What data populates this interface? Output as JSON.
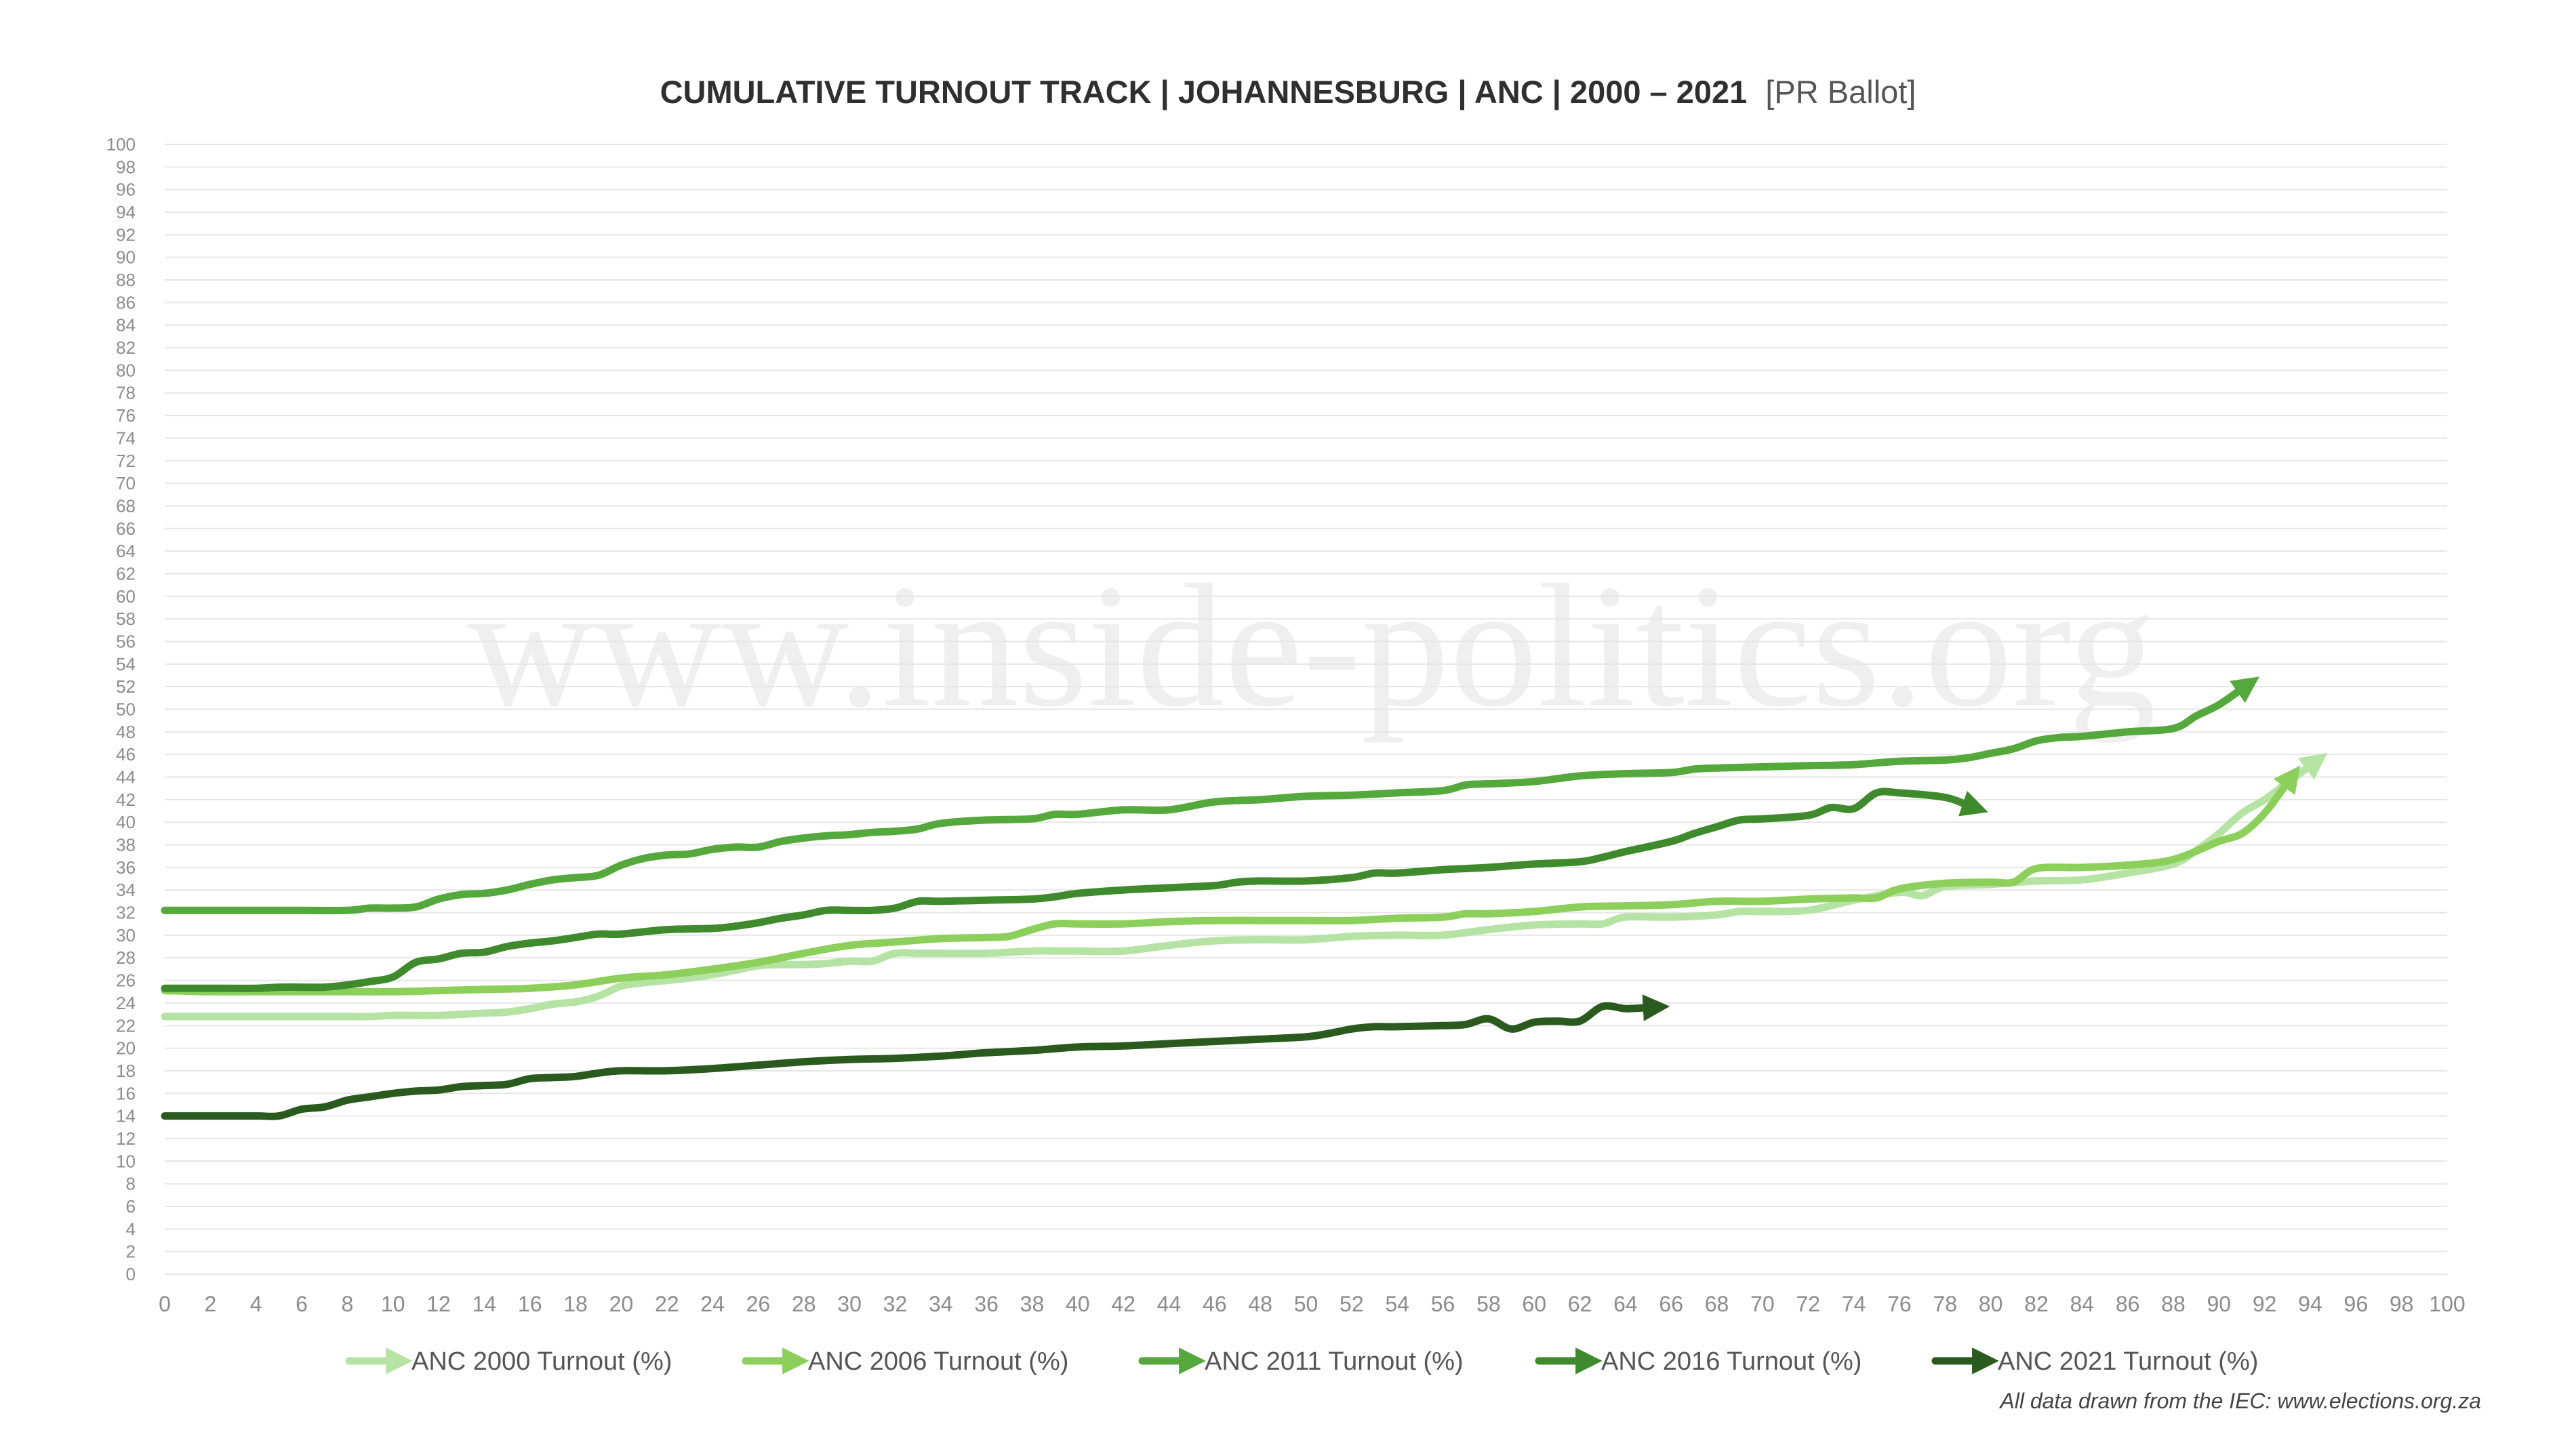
{
  "chart_data": {
    "type": "line",
    "title": "CUMULATIVE TURNOUT TRACK | JOHANNESBURG | ANC | 2000 – 2021",
    "title_suffix": "[PR Ballot]",
    "xlabel": "",
    "ylabel": "",
    "xlim": [
      0,
      100
    ],
    "ylim": [
      0,
      100
    ],
    "x_ticks": [
      0,
      2,
      4,
      6,
      8,
      10,
      12,
      14,
      16,
      18,
      20,
      22,
      24,
      26,
      28,
      30,
      32,
      34,
      36,
      38,
      40,
      42,
      44,
      46,
      48,
      50,
      52,
      54,
      56,
      58,
      60,
      62,
      64,
      66,
      68,
      70,
      72,
      74,
      76,
      78,
      80,
      82,
      84,
      86,
      88,
      90,
      92,
      94,
      96,
      98,
      100
    ],
    "y_ticks": [
      0,
      2,
      4,
      6,
      8,
      10,
      12,
      14,
      16,
      18,
      20,
      22,
      24,
      26,
      28,
      30,
      32,
      34,
      36,
      38,
      40,
      42,
      44,
      46,
      48,
      50,
      52,
      54,
      56,
      58,
      60,
      62,
      64,
      66,
      68,
      70,
      72,
      74,
      76,
      78,
      80,
      82,
      84,
      86,
      88,
      90,
      92,
      94,
      96,
      98,
      100
    ],
    "grid": true,
    "legend_position": "bottom",
    "watermark": "www.inside-politics.org",
    "source_note": "All data drawn from the IEC: www.elections.org.za",
    "series": [
      {
        "name": "ANC 2000 Turnout (%)",
        "color": "#b5e3a3",
        "x": [
          0,
          2,
          4,
          6,
          8,
          9,
          10,
          11,
          12,
          13,
          14,
          15,
          16,
          17,
          18,
          19,
          20,
          21,
          22,
          23,
          24,
          25,
          26,
          27,
          28,
          29,
          30,
          31,
          32,
          33,
          34,
          36,
          38,
          39,
          40,
          42,
          44,
          46,
          48,
          50,
          52,
          54,
          56,
          58,
          60,
          62,
          63,
          64,
          66,
          68,
          69,
          70,
          72,
          74,
          76,
          77,
          78,
          80,
          82,
          84,
          86,
          88,
          89,
          90,
          91,
          92,
          93,
          94
        ],
        "y": [
          22.8,
          22.8,
          22.8,
          22.8,
          22.8,
          22.8,
          22.9,
          22.9,
          22.9,
          23.0,
          23.1,
          23.2,
          23.5,
          23.9,
          24.1,
          24.6,
          25.5,
          25.8,
          26.0,
          26.2,
          26.5,
          26.9,
          27.3,
          27.4,
          27.4,
          27.5,
          27.7,
          27.7,
          28.4,
          28.4,
          28.4,
          28.4,
          28.6,
          28.6,
          28.6,
          28.6,
          29.1,
          29.5,
          29.6,
          29.6,
          29.9,
          30.0,
          30.0,
          30.5,
          30.9,
          31.0,
          31.0,
          31.6,
          31.6,
          31.8,
          32.1,
          32.1,
          32.2,
          33.1,
          33.8,
          33.5,
          34.3,
          34.5,
          34.8,
          34.9,
          35.5,
          36.3,
          37.5,
          39.0,
          40.8,
          42.0,
          43.5,
          45.0
        ]
      },
      {
        "name": "ANC 2006 Turnout (%)",
        "color": "#8ccf5a",
        "x": [
          0,
          2,
          4,
          6,
          8,
          10,
          12,
          14,
          16,
          18,
          20,
          22,
          24,
          26,
          28,
          30,
          32,
          34,
          36,
          37,
          38,
          39,
          40,
          42,
          44,
          46,
          48,
          50,
          52,
          54,
          56,
          57,
          58,
          60,
          62,
          64,
          66,
          68,
          70,
          72,
          74,
          75,
          76,
          78,
          80,
          81,
          82,
          84,
          86,
          88,
          90,
          91,
          92,
          93
        ],
        "y": [
          25.1,
          25.0,
          25.0,
          25.0,
          25.0,
          25.0,
          25.1,
          25.2,
          25.3,
          25.6,
          26.2,
          26.5,
          27.0,
          27.6,
          28.4,
          29.1,
          29.4,
          29.7,
          29.8,
          29.9,
          30.5,
          31.0,
          31.0,
          31.0,
          31.2,
          31.3,
          31.3,
          31.3,
          31.3,
          31.5,
          31.6,
          31.9,
          31.9,
          32.1,
          32.5,
          32.6,
          32.7,
          33.0,
          33.0,
          33.2,
          33.3,
          33.3,
          34.1,
          34.6,
          34.7,
          34.7,
          35.9,
          36.0,
          36.2,
          36.7,
          38.3,
          39.0,
          40.8,
          43.5
        ]
      },
      {
        "name": "ANC 2011 Turnout (%)",
        "color": "#55a83c",
        "x": [
          0,
          2,
          4,
          6,
          8,
          9,
          10,
          11,
          12,
          13,
          14,
          15,
          16,
          17,
          18,
          19,
          20,
          21,
          22,
          23,
          24,
          25,
          26,
          27,
          28,
          29,
          30,
          31,
          32,
          33,
          34,
          36,
          38,
          39,
          40,
          42,
          44,
          46,
          48,
          50,
          52,
          54,
          56,
          57,
          58,
          60,
          62,
          64,
          66,
          67,
          68,
          70,
          72,
          74,
          76,
          78,
          79,
          80,
          81,
          82,
          83,
          84,
          86,
          88,
          89,
          90,
          91
        ],
        "y": [
          32.2,
          32.2,
          32.2,
          32.2,
          32.2,
          32.4,
          32.4,
          32.5,
          33.2,
          33.6,
          33.7,
          34.0,
          34.5,
          34.9,
          35.1,
          35.3,
          36.2,
          36.8,
          37.1,
          37.2,
          37.6,
          37.8,
          37.8,
          38.3,
          38.6,
          38.8,
          38.9,
          39.1,
          39.2,
          39.4,
          39.9,
          40.2,
          40.3,
          40.7,
          40.7,
          41.1,
          41.1,
          41.8,
          42.0,
          42.3,
          42.4,
          42.6,
          42.8,
          43.3,
          43.4,
          43.6,
          44.1,
          44.3,
          44.4,
          44.7,
          44.8,
          44.9,
          45.0,
          45.1,
          45.4,
          45.5,
          45.7,
          46.1,
          46.5,
          47.2,
          47.5,
          47.6,
          48.0,
          48.3,
          49.4,
          50.4,
          51.8
        ]
      },
      {
        "name": "ANC 2016 Turnout (%)",
        "color": "#3f8a2c",
        "x": [
          0,
          2,
          4,
          5,
          6,
          7,
          8,
          9,
          10,
          11,
          12,
          13,
          14,
          15,
          16,
          17,
          18,
          19,
          20,
          22,
          24,
          25,
          26,
          27,
          28,
          29,
          30,
          31,
          32,
          33,
          34,
          36,
          38,
          39,
          40,
          42,
          44,
          46,
          47,
          48,
          50,
          52,
          53,
          54,
          56,
          57,
          58,
          60,
          62,
          63,
          64,
          66,
          67,
          68,
          69,
          70,
          72,
          73,
          74,
          75,
          76,
          78,
          79
        ],
        "y": [
          25.3,
          25.3,
          25.3,
          25.4,
          25.4,
          25.4,
          25.6,
          25.9,
          26.3,
          27.6,
          27.9,
          28.4,
          28.5,
          29.0,
          29.3,
          29.5,
          29.8,
          30.1,
          30.1,
          30.5,
          30.6,
          30.8,
          31.1,
          31.5,
          31.8,
          32.2,
          32.2,
          32.2,
          32.4,
          33.0,
          33.0,
          33.1,
          33.2,
          33.4,
          33.7,
          34.0,
          34.2,
          34.4,
          34.7,
          34.8,
          34.8,
          35.1,
          35.5,
          35.5,
          35.8,
          35.9,
          36.0,
          36.3,
          36.5,
          36.9,
          37.4,
          38.3,
          39.0,
          39.6,
          40.2,
          40.3,
          40.6,
          41.3,
          41.2,
          42.6,
          42.6,
          42.2,
          41.5
        ]
      },
      {
        "name": "ANC 2021 Turnout (%)",
        "color": "#2a5a1e",
        "x": [
          0,
          2,
          4,
          5,
          6,
          7,
          8,
          9,
          10,
          11,
          12,
          13,
          14,
          15,
          16,
          17,
          18,
          19,
          20,
          22,
          24,
          26,
          28,
          30,
          32,
          34,
          36,
          38,
          40,
          42,
          44,
          46,
          48,
          50,
          51,
          52,
          53,
          54,
          56,
          57,
          58,
          59,
          60,
          61,
          62,
          63,
          64,
          65
        ],
        "y": [
          14.0,
          14.0,
          14.0,
          14.0,
          14.6,
          14.8,
          15.4,
          15.7,
          16.0,
          16.2,
          16.3,
          16.6,
          16.7,
          16.8,
          17.3,
          17.4,
          17.5,
          17.8,
          18.0,
          18.0,
          18.2,
          18.5,
          18.8,
          19.0,
          19.1,
          19.3,
          19.6,
          19.8,
          20.1,
          20.2,
          20.4,
          20.6,
          20.8,
          21.0,
          21.3,
          21.7,
          21.9,
          21.9,
          22.0,
          22.1,
          22.6,
          21.7,
          22.3,
          22.4,
          22.4,
          23.7,
          23.5,
          23.6
        ]
      }
    ]
  }
}
